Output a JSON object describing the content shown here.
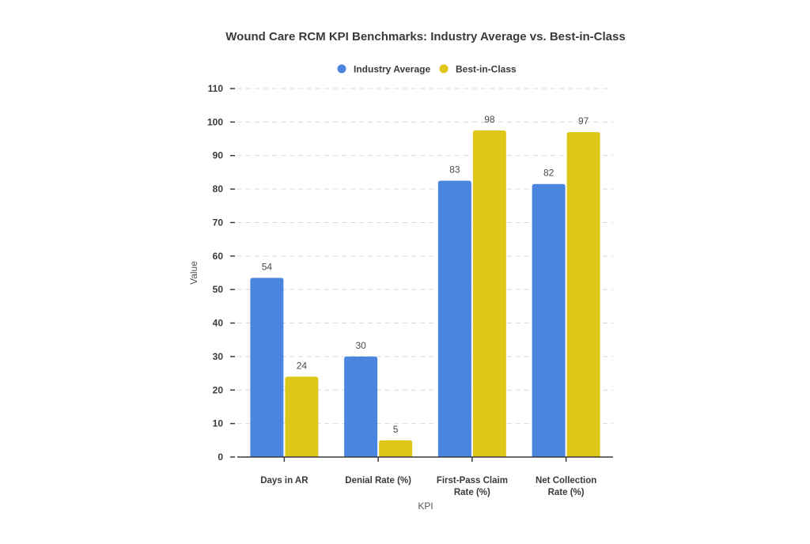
{
  "chart_data": {
    "type": "bar",
    "title": "Wound Care RCM KPI Benchmarks: Industry Average vs. Best-in-Class",
    "xlabel": "KPI",
    "ylabel": "Value",
    "ylim": [
      0,
      110
    ],
    "yticks": [
      0,
      10,
      20,
      30,
      40,
      50,
      60,
      70,
      80,
      90,
      100,
      110
    ],
    "grid": true,
    "legend_position": "top-center",
    "categories": [
      [
        "Days in AR"
      ],
      [
        "Denial Rate (%)"
      ],
      [
        "First-Pass Claim",
        "Rate (%)"
      ],
      [
        "Net Collection",
        "Rate (%)"
      ]
    ],
    "series": [
      {
        "name": "Industry Average",
        "color": "#4a86e0",
        "values": [
          53.5,
          30,
          82.5,
          81.5
        ],
        "labels": [
          "54",
          "30",
          "83",
          "82"
        ]
      },
      {
        "name": "Best-in-Class",
        "color": "#dfc718",
        "values": [
          24,
          5,
          97.5,
          97
        ],
        "labels": [
          "24",
          "5",
          "98",
          "97"
        ]
      }
    ]
  }
}
